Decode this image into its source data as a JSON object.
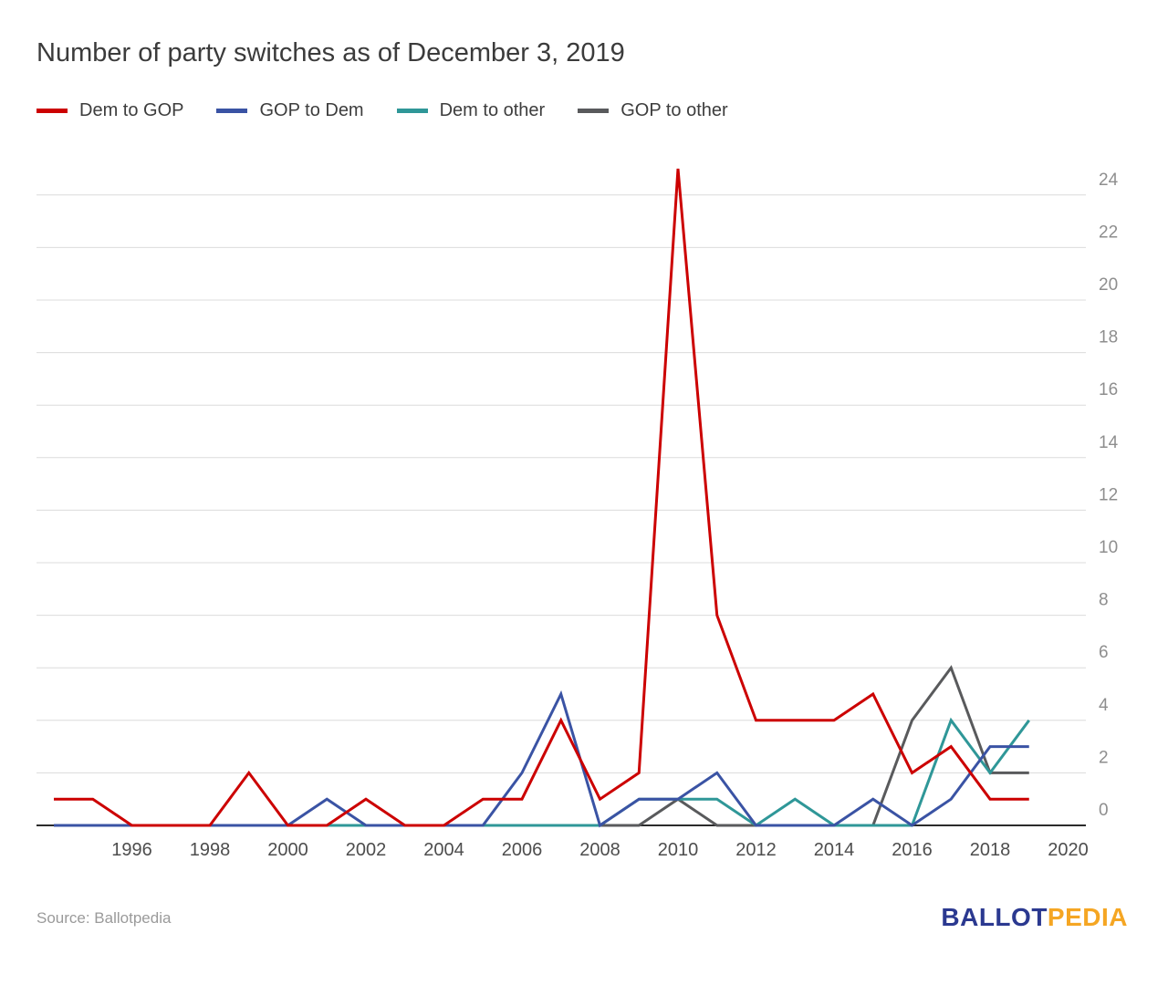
{
  "title": "Number of party switches as of December 3, 2019",
  "footer": {
    "source": "Source: Ballotpedia",
    "logo": {
      "part1": "BALLOT",
      "part2": "PEDIA"
    }
  },
  "colors": {
    "gridline": "#dcdcdc",
    "axis": "#2b2b2b",
    "x_label": "#4d4d4d",
    "y_label": "#8e8e8e",
    "title_text": "#3b3b3b",
    "source_text": "#9a9a9a",
    "logo_blue": "#2b3990",
    "logo_gold": "#f5a623"
  },
  "chart_data": {
    "type": "line",
    "title": "Number of party switches as of December 3, 2019",
    "xlabel": "",
    "ylabel": "",
    "ylim": [
      0,
      25
    ],
    "y_tick_step": 2,
    "grid": true,
    "legend_position": "top-left",
    "x": [
      1994,
      1995,
      1996,
      1997,
      1998,
      1999,
      2000,
      2001,
      2002,
      2003,
      2004,
      2005,
      2006,
      2007,
      2008,
      2009,
      2010,
      2011,
      2012,
      2013,
      2014,
      2015,
      2016,
      2017,
      2018,
      2019
    ],
    "x_ticks": [
      1996,
      1998,
      2000,
      2002,
      2004,
      2006,
      2008,
      2010,
      2012,
      2014,
      2016,
      2018,
      2020
    ],
    "y_ticks": [
      0,
      2,
      4,
      6,
      8,
      10,
      12,
      14,
      16,
      18,
      20,
      22,
      24
    ],
    "series": [
      {
        "name": "Dem to GOP",
        "color": "#cc0000",
        "values": [
          1,
          1,
          0,
          0,
          0,
          2,
          0,
          0,
          1,
          0,
          0,
          1,
          1,
          4,
          1,
          2,
          25,
          8,
          4,
          4,
          4,
          5,
          2,
          3,
          1,
          1
        ]
      },
      {
        "name": "GOP to Dem",
        "color": "#3a53a4",
        "values": [
          0,
          0,
          0,
          0,
          0,
          0,
          0,
          1,
          0,
          0,
          0,
          0,
          2,
          5,
          0,
          1,
          1,
          2,
          0,
          0,
          0,
          1,
          0,
          1,
          3,
          3
        ]
      },
      {
        "name": "Dem to other",
        "color": "#2f9798",
        "values": [
          0,
          0,
          0,
          0,
          0,
          0,
          0,
          0,
          0,
          0,
          0,
          0,
          0,
          0,
          0,
          1,
          1,
          1,
          0,
          1,
          0,
          0,
          0,
          4,
          2,
          4
        ]
      },
      {
        "name": "GOP to other",
        "color": "#595a5c",
        "values": [
          0,
          0,
          0,
          0,
          0,
          0,
          0,
          0,
          0,
          0,
          0,
          0,
          0,
          0,
          0,
          0,
          1,
          0,
          0,
          0,
          0,
          0,
          4,
          6,
          2,
          2
        ]
      }
    ]
  }
}
